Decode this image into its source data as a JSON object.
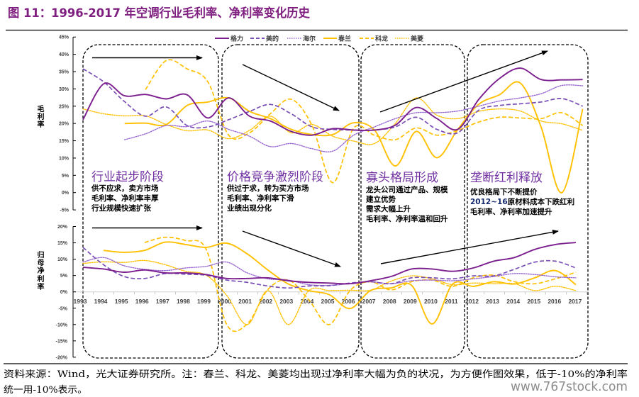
{
  "title": "图 11：1996-2017 年空调行业毛利率、净利率变化历史",
  "colors": {
    "title": "#7f1f7f",
    "stage_title": "#7030a0",
    "highlight_text": "#14286e",
    "watermark": "#8c8c8c"
  },
  "stages": [
    {
      "title": "行业起步阶段",
      "trend": "flat",
      "lines": [
        "供不应求，卖方市场",
        "毛利率、净利率丰厚",
        "行业规模快速扩张"
      ]
    },
    {
      "title": "价格竞争激烈阶段",
      "trend": "down",
      "lines": [
        "供过于求，转为买方市场",
        "毛利率、净利率下滑",
        "业绩出现分化"
      ]
    },
    {
      "title": "寡头格局形成",
      "trend": "up",
      "lines": [
        "龙头公司通过产品、规模",
        "建立优势",
        "需求大幅上升",
        "毛利率、净利率温和回升"
      ]
    },
    {
      "title": "垄断红利释放",
      "trend": "up",
      "lines": [
        "优良格局下不断提价",
        {
          "highlight": "2012~16",
          "text": "原材料成本下跌红利"
        },
        "毛利率、净利率加速提升"
      ]
    }
  ],
  "chart_data": [
    {
      "type": "line",
      "title": "",
      "xlabel": "",
      "ylabel": "毛利率",
      "ylim": [
        -5,
        45
      ],
      "yticks": [
        45,
        40,
        35,
        30,
        25,
        20,
        15,
        10,
        5,
        0,
        -5
      ],
      "ytick_labels": [
        "45%",
        "40%",
        "35%",
        "30%",
        "25%",
        "20%",
        "15%",
        "10%",
        "5%",
        "0%",
        "-5%"
      ],
      "grid": false,
      "legend": "top",
      "smoothed": true,
      "categories": [
        "1993",
        "1994",
        "1995",
        "1996",
        "1997",
        "1998",
        "1999",
        "2000",
        "2001",
        "2002",
        "2003",
        "2004",
        "2005",
        "2006",
        "2007",
        "2008",
        "2009",
        "2010",
        "2011",
        "2012",
        "2013",
        "2014",
        "2015",
        "2016",
        "2017"
      ],
      "series": [
        {
          "name": "格力",
          "color": "#7b1f8e",
          "style": "solid",
          "values": [
            21.1,
            31.5,
            28.0,
            28.4,
            27.1,
            28.3,
            21.6,
            27.4,
            22.1,
            20.7,
            17.7,
            16.6,
            18.5,
            18.1,
            18.1,
            19.5,
            24.6,
            21.4,
            18.3,
            26.9,
            33.0,
            36.0,
            32.7,
            32.6,
            32.7
          ]
        },
        {
          "name": "美的",
          "color": "#7a4fb5",
          "style": "dash",
          "values": [
            35.8,
            32.0,
            26.3,
            22.1,
            24.8,
            19.4,
            19.0,
            21.1,
            23.5,
            25.5,
            22.8,
            19.0,
            18.3,
            18.1,
            18.1,
            19.0,
            21.8,
            18.3,
            17.3,
            23.8,
            25.2,
            25.7,
            26.2,
            27.2,
            25.0
          ]
        },
        {
          "name": "海尔",
          "color": "#9a6ad1",
          "style": "dot",
          "values": [
            null,
            null,
            15.3,
            17.0,
            19.4,
            19.1,
            20.7,
            18.3,
            16.3,
            13.3,
            14.2,
            12.7,
            12.0,
            16.6,
            19.0,
            21.4,
            23.1,
            23.1,
            23.6,
            25.0,
            26.5,
            27.4,
            28.6,
            31.0,
            30.9
          ]
        },
        {
          "name": "春兰",
          "color": "#ffc000",
          "style": "solid",
          "values": [
            null,
            null,
            20.0,
            20.1,
            19.7,
            25.2,
            26.2,
            27.4,
            23.5,
            21.4,
            18.3,
            16.8,
            16.8,
            20.2,
            18.1,
            7.7,
            17.7,
            10.1,
            18.3,
            25.5,
            28.3,
            31.7,
            19.0,
            0.0,
            24.2
          ]
        },
        {
          "name": "科龙",
          "color": "#ffc000",
          "style": "dash",
          "values": [
            null,
            null,
            null,
            29.8,
            38.2,
            35.8,
            32.0,
            16.6,
            17.3,
            22.8,
            27.0,
            19.4,
            2.9,
            18.7,
            16.6,
            15.3,
            18.7,
            16.6,
            18.0,
            20.4,
            21.8,
            21.6,
            21.4,
            23.1,
            19.4
          ]
        },
        {
          "name": "美菱",
          "color": "#ffc000",
          "style": "dot",
          "values": [
            24.2,
            22.8,
            22.2,
            22.2,
            19.7,
            17.9,
            18.1,
            15.6,
            18.0,
            22.1,
            17.3,
            19.7,
            16.3,
            14.9,
            14.2,
            20.0,
            27.4,
            22.4,
            21.4,
            23.5,
            24.2,
            23.6,
            20.7,
            19.9,
            18.0
          ]
        }
      ]
    },
    {
      "type": "line",
      "title": "",
      "xlabel": "",
      "ylabel": "归母净利率",
      "ylim": [
        -20,
        20
      ],
      "yticks": [
        20,
        15,
        10,
        5,
        0,
        -5,
        -10,
        -15,
        -20
      ],
      "ytick_labels": [
        "20%",
        "15%",
        "10%",
        "5%",
        "0%",
        "-5%",
        "-10%",
        "-15%",
        "-20%"
      ],
      "grid": false,
      "smoothed": true,
      "categories": [
        "1993",
        "1994",
        "1995",
        "1996",
        "1997",
        "1998",
        "1999",
        "2000",
        "2001",
        "2002",
        "2003",
        "2004",
        "2005",
        "2006",
        "2007",
        "2008",
        "2009",
        "2010",
        "2011",
        "2012",
        "2013",
        "2014",
        "2015",
        "2016",
        "2017"
      ],
      "series": [
        {
          "name": "格力",
          "color": "#7b1f8e",
          "style": "solid",
          "values": [
            7.5,
            7.0,
            6.0,
            6.7,
            5.8,
            5.8,
            5.3,
            4.1,
            4.1,
            4.3,
            3.4,
            2.9,
            2.7,
            2.5,
            3.4,
            4.7,
            7.0,
            7.0,
            6.3,
            7.3,
            9.4,
            10.5,
            13.0,
            14.5,
            15.1
          ]
        },
        {
          "name": "美的",
          "color": "#7a4fb5",
          "style": "dash",
          "values": [
            13.6,
            8.3,
            4.7,
            4.1,
            5.6,
            5.4,
            5.1,
            3.6,
            2.9,
            1.8,
            1.2,
            1.8,
            1.9,
            2.7,
            3.1,
            2.5,
            4.3,
            4.3,
            4.0,
            4.9,
            4.9,
            6.9,
            9.1,
            9.4,
            7.3
          ]
        },
        {
          "name": "海尔",
          "color": "#9a6ad1",
          "style": "dot",
          "values": [
            9.1,
            10.5,
            8.0,
            6.9,
            6.5,
            7.3,
            7.8,
            9.1,
            5.8,
            4.0,
            3.6,
            2.2,
            2.0,
            2.5,
            3.1,
            2.5,
            3.4,
            3.6,
            3.4,
            4.0,
            4.7,
            5.6,
            5.3,
            4.6,
            4.3
          ]
        },
        {
          "name": "春兰",
          "color": "#ffc000",
          "style": "solid",
          "values": [
            null,
            12.7,
            12.1,
            12.7,
            15.2,
            14.5,
            13.6,
            14.9,
            11.6,
            6.7,
            2.4,
            0.4,
            -0.9,
            -5.1,
            0.4,
            1.2,
            2.0,
            -9.8,
            2.4,
            1.7,
            3.1,
            2.4,
            4.3,
            6.5,
            2.2
          ]
        },
        {
          "name": "科龙",
          "color": "#ffc000",
          "style": "dash",
          "values": [
            null,
            null,
            null,
            15.1,
            16.7,
            15.7,
            13.0,
            -10.0,
            -9.8,
            0.7,
            3.6,
            -2.5,
            -10.0,
            0.4,
            3.1,
            0.6,
            3.1,
            3.6,
            1.7,
            4.3,
            5.1,
            3.1,
            2.5,
            4.0,
            6.0
          ]
        },
        {
          "name": "美菱",
          "color": "#ffc000",
          "style": "dot",
          "values": [
            8.7,
            9.2,
            9.0,
            9.6,
            8.3,
            6.3,
            5.1,
            -1.1,
            -10.0,
            0.4,
            -10.0,
            0.4,
            0.4,
            0.5,
            0.5,
            3.3,
            4.9,
            4.0,
            2.2,
            2.7,
            2.5,
            2.5,
            0.4,
            1.7,
            0.4
          ]
        }
      ]
    }
  ],
  "footer": {
    "line1": "资料来源：Wind，光大证券研究所。注：春兰、科龙、美菱均出现过净利率大幅为负的状况，为方便作图效果，低于-10%的净利率",
    "line2": "统一用-10%表示。",
    "watermark": "www.767stock.com"
  }
}
